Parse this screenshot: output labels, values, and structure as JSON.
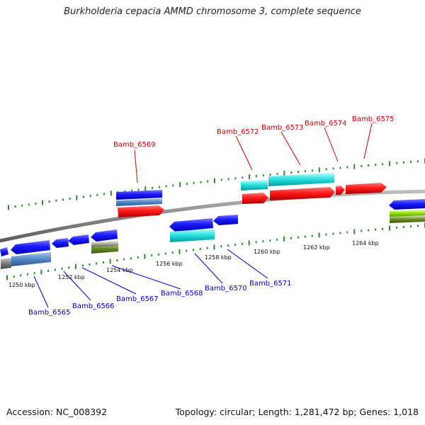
{
  "title": "Burkholderia cepacia AMMD chromosome 3, complete sequence",
  "footer": {
    "accession": "Accession: NC_008392",
    "summary": "Topology: circular; Length: 1,281,472 bp; Genes: 1,018"
  },
  "colors": {
    "forward_strand": "#ff1a1a",
    "reverse_strand": "#1a1aff",
    "forward_label": "#cc0000",
    "reverse_label": "#0000cc",
    "backbone": "#8c8c8c",
    "tick": "#2e8b2e",
    "cyan_feature": "#22dddd",
    "steelblue_feature": "#4f86c6",
    "olive_feature": "#6b8e23",
    "gray_feature": "#7a7a7a"
  },
  "kbp_ticks": [
    "1250 kbp",
    "1252 kbp",
    "1254 kbp",
    "1256 kbp",
    "1258 kbp",
    "1260 kbp",
    "1262 kbp",
    "1264 kbp"
  ],
  "forward_genes": [
    "Bamb_6569",
    "Bamb_6572",
    "Bamb_6573",
    "Bamb_6574",
    "Bamb_6575"
  ],
  "reverse_genes": [
    "Bamb_6565",
    "Bamb_6566",
    "Bamb_6567",
    "Bamb_6568",
    "Bamb_6570",
    "Bamb_6571"
  ]
}
